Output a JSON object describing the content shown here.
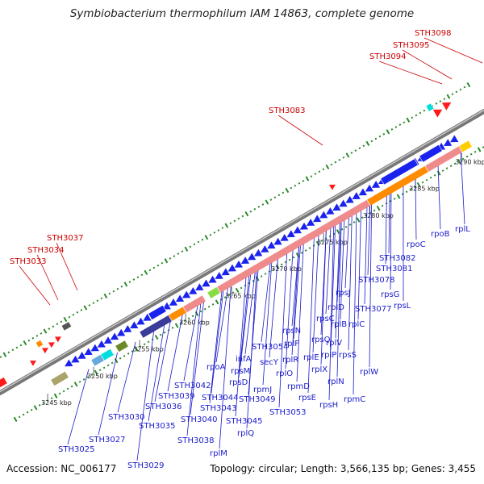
{
  "title": "Symbiobacterium thermophilum IAM 14863, complete genome",
  "accession": "Accession: NC_006177",
  "summary": "Topology: circular; Length: 3,566,135 bp; Genes: 3,455",
  "colors": {
    "backbone": "#888888",
    "forward_gene": "#ff1a1a",
    "reverse_gene": "#1a22ee",
    "rna_block": "#f08b8b",
    "orange_block": "#ff8c00",
    "navy_block": "#3b3b9a",
    "cyan_block": "#00dddd",
    "green_tick": "#2a8a2a",
    "red_label": "#cc0000",
    "blue_label": "#1a1acc"
  },
  "scale_ticks": [
    {
      "label": "3245 kbp",
      "pos": 0.07
    },
    {
      "label": "3250 kbp",
      "pos": 0.165
    },
    {
      "label": "3255 kbp",
      "pos": 0.26
    },
    {
      "label": "3260 kbp",
      "pos": 0.355
    },
    {
      "label": "3265 kbp",
      "pos": 0.45
    },
    {
      "label": "3270 kbp",
      "pos": 0.545
    },
    {
      "label": "3275 kbp",
      "pos": 0.64
    },
    {
      "label": "3280 kbp",
      "pos": 0.735
    },
    {
      "label": "3285 kbp",
      "pos": 0.83
    },
    {
      "label": "3290 kbp",
      "pos": 0.925
    }
  ],
  "top_labels": [
    "STH3033",
    "STH3034",
    "STH3037",
    "STH3083",
    "STH3094",
    "STH3095",
    "STH3098"
  ],
  "bottom_labels": [
    "STH3025",
    "STH3027",
    "STH3029",
    "STH3030",
    "STH3035",
    "STH3036",
    "STH3038",
    "STH3039",
    "STH3040",
    "STH3042",
    "STH3043",
    "STH3044",
    "STH3045",
    "STH3049",
    "STH3053",
    "STH3054",
    "rplM",
    "rplQ",
    "rpoA",
    "rpsM",
    "rpsD",
    "infA",
    "rpmJ",
    "secY",
    "rplO",
    "rpmD",
    "rpsE",
    "rplR",
    "rplF",
    "rpsN",
    "rplE",
    "rplX",
    "rpsH",
    "rplN",
    "rplP",
    "rpsQ",
    "rpmC",
    "rplV",
    "rpsS",
    "rplB",
    "rplW",
    "rpsC",
    "rplC",
    "rplD",
    "rpsJ",
    "STH3077",
    "STH3078",
    "rpsG",
    "rpsL",
    "STH3081",
    "STH3082",
    "rpoC",
    "rpoB",
    "rplL"
  ]
}
